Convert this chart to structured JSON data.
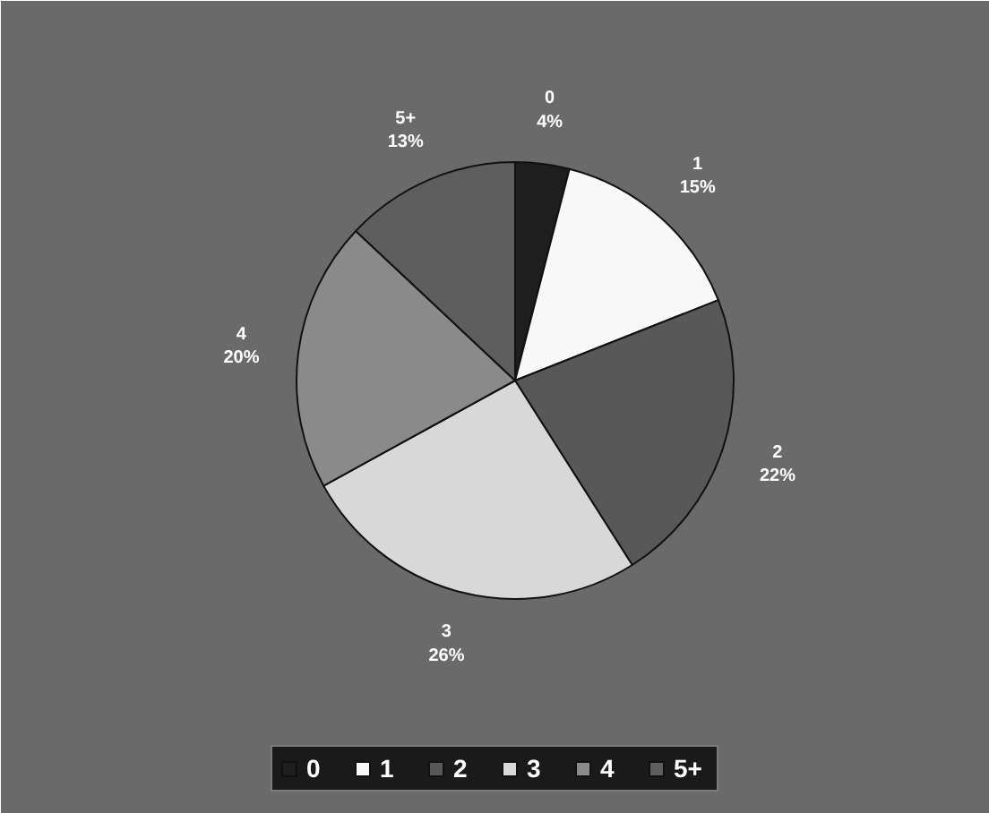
{
  "chart_data": {
    "type": "pie",
    "categories": [
      "0",
      "1",
      "2",
      "3",
      "4",
      "5+"
    ],
    "values": [
      4,
      15,
      22,
      26,
      20,
      13
    ],
    "colors": [
      "#1e1e1e",
      "#f8f8f8",
      "#585858",
      "#d8d8d8",
      "#8a8a8a",
      "#5e5e5e"
    ],
    "value_labels": [
      "4%",
      "15%",
      "22%",
      "26%",
      "20%",
      "13%"
    ],
    "legend": "bottom"
  }
}
